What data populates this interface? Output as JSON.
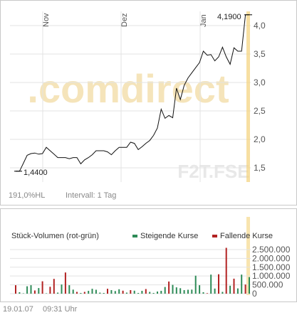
{
  "colors": {
    "line": "#111111",
    "grid": "#e3e3e3",
    "highlight": "#f3d27a",
    "rising": "#2e8b57",
    "falling": "#b22222",
    "watermark": "#f5e4ba",
    "watermark_text": "#e8e8e8"
  },
  "watermark": {
    "logo_text": ".comdirect",
    "code": "F2T.FSE"
  },
  "price_chart": {
    "info_left": "191,0%HL",
    "info_interval": "Intervall: 1 Tag",
    "high_label": "4,1900",
    "low_label": "1,4400",
    "months": [
      "Nov",
      "Dez",
      "Jan"
    ]
  },
  "volume_chart": {
    "title": "Stück-Volumen (rot-grün)",
    "legend_rising": "Steigende Kurse",
    "legend_falling": "Fallende Kurse"
  },
  "footer": {
    "date": "19.01.07",
    "time": "09:31 Uhr"
  },
  "chart_data": [
    {
      "type": "line",
      "title": "",
      "ylim": [
        1.25,
        4.25
      ],
      "y_ticks": [
        "1,5",
        "2,0",
        "2,5",
        "3,0",
        "3,5",
        "4,0"
      ],
      "y_tick_values": [
        1.5,
        2.0,
        2.5,
        3.0,
        3.5,
        4.0
      ],
      "x_tick_labels": [
        "Nov",
        "Dez",
        "Jan"
      ],
      "series": [
        {
          "values": [
            1.44,
            1.44,
            1.58,
            1.72,
            1.75,
            1.76,
            1.74,
            1.75,
            1.86,
            1.8,
            1.74,
            1.68,
            1.68,
            1.68,
            1.66,
            1.68,
            1.68,
            1.57,
            1.64,
            1.68,
            1.73,
            1.8,
            1.8,
            1.8,
            1.78,
            1.73,
            1.8,
            1.86,
            1.86,
            1.86,
            1.95,
            1.93,
            1.82,
            1.87,
            1.93,
            1.98,
            2.07,
            2.2,
            2.53,
            2.37,
            2.42,
            2.38,
            2.9,
            2.7,
            2.95,
            3.08,
            3.17,
            3.26,
            3.35,
            3.55,
            3.48,
            3.49,
            3.38,
            3.45,
            3.62,
            3.45,
            3.32,
            3.61,
            3.55,
            3.55,
            4.19,
            4.19
          ]
        }
      ]
    },
    {
      "type": "bar",
      "title": "",
      "ylim": [
        0,
        2700000
      ],
      "y_ticks": [
        "0",
        "500.000",
        "1.000.000",
        "1.500.000",
        "2.000.000",
        "2.500.000"
      ],
      "y_tick_values": [
        0,
        500000,
        1000000,
        1500000,
        2000000,
        2500000
      ],
      "directions": [
        "f",
        "u",
        "u",
        "u",
        "u",
        "f",
        "u",
        "f",
        "u",
        "f",
        "f",
        "u",
        "u",
        "f",
        "u",
        "u",
        "f",
        "u",
        "f",
        "u",
        "u",
        "u",
        "u",
        "u",
        "f",
        "u",
        "u",
        "u",
        "f",
        "u",
        "f",
        "u",
        "u",
        "u",
        "f",
        "u",
        "u",
        "u",
        "u",
        "u",
        "f",
        "u",
        "u",
        "u",
        "u",
        "u",
        "u",
        "u",
        "u",
        "u",
        "f",
        "u",
        "u",
        "f",
        "u",
        "f",
        "u",
        "f",
        "u",
        "u",
        "f",
        "u"
      ],
      "values": [
        480000,
        80000,
        20000,
        420000,
        480000,
        180000,
        320000,
        700000,
        20000,
        390000,
        840000,
        60000,
        520000,
        1200000,
        480000,
        230000,
        100000,
        40000,
        100000,
        160000,
        280000,
        220000,
        60000,
        40000,
        280000,
        200000,
        150000,
        250000,
        170000,
        60000,
        200000,
        170000,
        40000,
        160000,
        260000,
        100000,
        40000,
        120000,
        160000,
        380000,
        690000,
        500000,
        360000,
        310000,
        200000,
        220000,
        230000,
        1020000,
        480000,
        80000,
        30000,
        1080000,
        290000,
        1100000,
        100000,
        2600000,
        450000,
        850000,
        300000,
        1080000,
        520000,
        940000
      ]
    }
  ]
}
